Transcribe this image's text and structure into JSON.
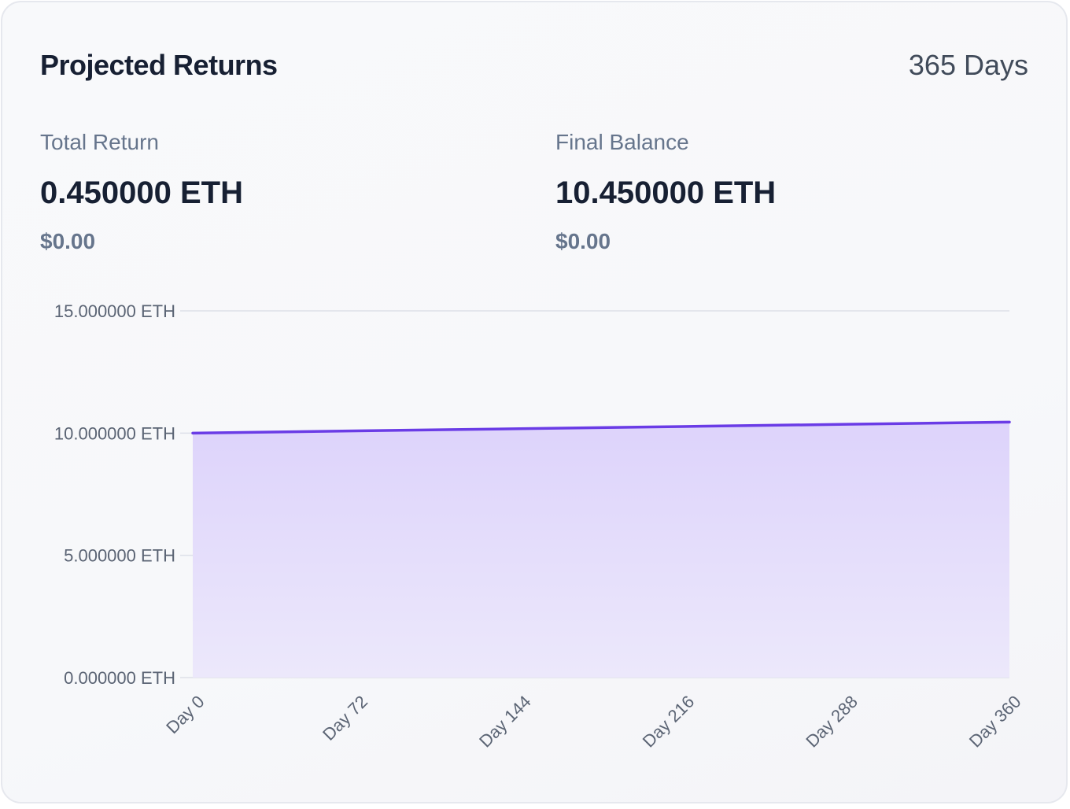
{
  "header": {
    "title": "Projected Returns",
    "period": "365 Days"
  },
  "stats": {
    "total_return": {
      "label": "Total Return",
      "value": "0.450000 ETH",
      "fiat": "$0.00"
    },
    "final_balance": {
      "label": "Final Balance",
      "value": "10.450000 ETH",
      "fiat": "$0.00"
    }
  },
  "colors": {
    "line": "#6a3ce6",
    "fill_top": "#ddd3fb",
    "fill_bottom": "#ece8fb",
    "grid": "#dde0e8"
  },
  "chart_data": {
    "type": "area",
    "x": [
      0,
      72,
      144,
      216,
      288,
      360
    ],
    "x_tick_labels": [
      "Day 0",
      "Day 72",
      "Day 144",
      "Day 216",
      "Day 288",
      "Day 360"
    ],
    "series": [
      {
        "values": [
          10.0,
          10.09,
          10.18,
          10.27,
          10.36,
          10.45
        ]
      }
    ],
    "y_ticks": [
      0,
      5,
      10,
      15
    ],
    "y_tick_labels": [
      "0.000000 ETH",
      "5.000000 ETH",
      "10.000000 ETH",
      "15.000000 ETH"
    ],
    "xlim": [
      0,
      360
    ],
    "ylim": [
      0,
      15
    ],
    "grid": true,
    "legend": "none",
    "title": "",
    "xlabel": "",
    "ylabel": ""
  }
}
